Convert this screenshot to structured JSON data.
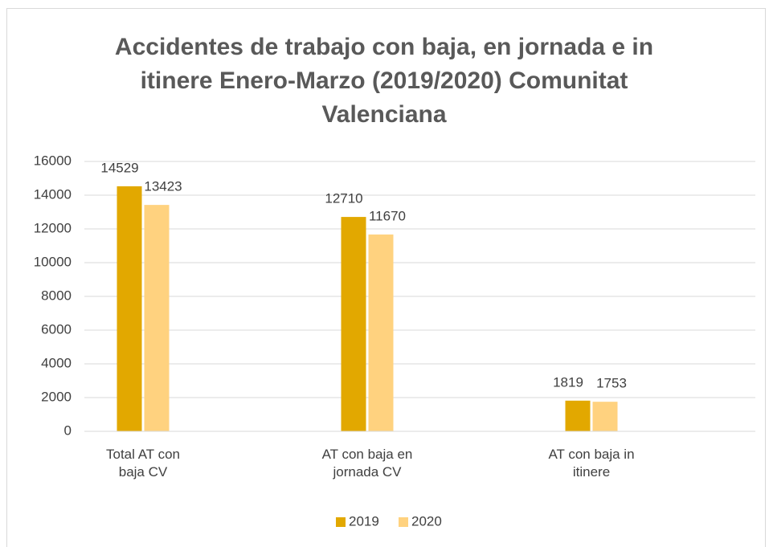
{
  "chart_data": {
    "type": "bar",
    "title": "Accidentes de trabajo con baja, en jornada e in itinere Enero-Marzo (2019/2020) Comunitat Valenciana",
    "categories": [
      "Total AT con baja CV",
      "AT con baja en jornada CV",
      "AT con baja in itinere"
    ],
    "series": [
      {
        "name": "2019",
        "color": "#E2A800",
        "values": [
          14529,
          12710,
          1819
        ]
      },
      {
        "name": "2020",
        "color": "#FFD27F",
        "values": [
          13423,
          11670,
          1753
        ]
      }
    ],
    "ylim": [
      0,
      16000
    ],
    "yticks": [
      0,
      2000,
      4000,
      6000,
      8000,
      10000,
      12000,
      14000,
      16000
    ],
    "grid": true,
    "legend": "bottom"
  }
}
